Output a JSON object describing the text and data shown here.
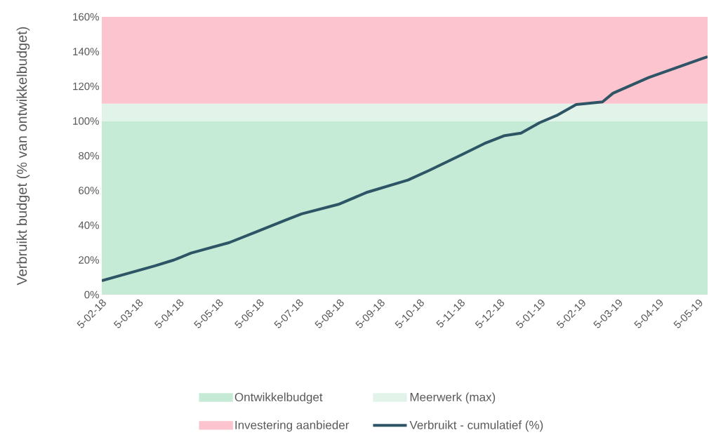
{
  "chart_data": {
    "type": "line",
    "ylabel": "Verbruikt budget (% van ontwikkelbudget)",
    "x": [
      "2018-02-05",
      "2018-03-17",
      "2018-04-01",
      "2018-04-14",
      "2018-05-13",
      "2018-06-02",
      "2018-06-25",
      "2018-07-07",
      "2018-08-04",
      "2018-08-26",
      "2018-09-26",
      "2018-10-12",
      "2018-11-07",
      "2018-11-23",
      "2018-12-08",
      "2018-12-21",
      "2019-01-04",
      "2019-01-18",
      "2019-02-01",
      "2019-02-21",
      "2019-03-01",
      "2019-03-28",
      "2019-05-08",
      "2019-05-12"
    ],
    "series": [
      {
        "name": "Verbruikt - cumulatief (%)",
        "color": "#2e5566",
        "values": [
          8,
          16.5,
          20,
          24,
          30,
          36,
          43,
          46.5,
          52,
          59,
          66,
          71.5,
          81,
          87,
          91.5,
          93,
          99,
          103.5,
          109.5,
          111,
          116,
          125,
          136,
          137
        ]
      }
    ],
    "xlim": [
      "2018-02-05",
      "2019-05-12"
    ],
    "xticks": [
      {
        "value": "2018-02-05",
        "label": "5-02-18"
      },
      {
        "value": "2018-03-05",
        "label": "5-03-18"
      },
      {
        "value": "2018-04-05",
        "label": "5-04-18"
      },
      {
        "value": "2018-05-05",
        "label": "5-05-18"
      },
      {
        "value": "2018-06-05",
        "label": "5-06-18"
      },
      {
        "value": "2018-07-05",
        "label": "5-07-18"
      },
      {
        "value": "2018-08-05",
        "label": "5-08-18"
      },
      {
        "value": "2018-09-05",
        "label": "5-09-18"
      },
      {
        "value": "2018-10-05",
        "label": "5-10-18"
      },
      {
        "value": "2018-11-05",
        "label": "5-11-18"
      },
      {
        "value": "2018-12-05",
        "label": "5-12-18"
      },
      {
        "value": "2019-01-05",
        "label": "5-01-19"
      },
      {
        "value": "2019-02-05",
        "label": "5-02-19"
      },
      {
        "value": "2019-03-05",
        "label": "5-03-19"
      },
      {
        "value": "2019-04-05",
        "label": "5-04-19"
      },
      {
        "value": "2019-05-05",
        "label": "5-05-19"
      }
    ],
    "ylim": [
      0,
      160
    ],
    "yticks": [
      {
        "value": 0,
        "label": "0%"
      },
      {
        "value": 20,
        "label": "20%"
      },
      {
        "value": 40,
        "label": "40%"
      },
      {
        "value": 60,
        "label": "60%"
      },
      {
        "value": 80,
        "label": "80%"
      },
      {
        "value": 100,
        "label": "100%"
      },
      {
        "value": 120,
        "label": "120%"
      },
      {
        "value": 140,
        "label": "140%"
      },
      {
        "value": 160,
        "label": "160%"
      }
    ],
    "bands": [
      {
        "axis": "y",
        "from": 0,
        "to": 100,
        "label": "Ontwikkelbudget",
        "color": "#c5ebd6"
      },
      {
        "axis": "y",
        "from": 100,
        "to": 110,
        "label": "Meerwerk (max)",
        "color": "#e2f4ea"
      },
      {
        "axis": "y",
        "from": 110,
        "to": 160,
        "label": "Investering aanbieder",
        "color": "#fcc4cf"
      }
    ],
    "legend": "bottom",
    "grid": false,
    "marker": "none",
    "line_style": "solid"
  }
}
